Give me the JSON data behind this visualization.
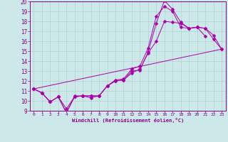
{
  "xlabel": "Windchill (Refroidissement éolien,°C)",
  "bg_color": "#cce8e8",
  "line_color": "#aa00aa",
  "xlim": [
    -0.5,
    23.5
  ],
  "ylim": [
    9,
    20
  ],
  "xticks": [
    0,
    1,
    2,
    3,
    4,
    5,
    6,
    7,
    8,
    9,
    10,
    11,
    12,
    13,
    14,
    15,
    16,
    17,
    18,
    19,
    20,
    21,
    22,
    23
  ],
  "yticks": [
    9,
    10,
    11,
    12,
    13,
    14,
    15,
    16,
    17,
    18,
    19,
    20
  ],
  "series": [
    {
      "x": [
        0,
        1,
        2,
        3,
        4,
        5,
        6,
        7,
        8,
        9,
        10,
        11,
        12,
        13,
        14,
        15,
        16,
        17,
        18,
        19,
        20,
        21
      ],
      "y": [
        11.2,
        10.8,
        9.9,
        10.4,
        8.8,
        10.4,
        10.5,
        10.3,
        10.5,
        11.5,
        12.0,
        12.1,
        13.0,
        13.1,
        14.9,
        17.8,
        20.1,
        19.2,
        17.9,
        17.3,
        17.4,
        16.5
      ],
      "marker": "D",
      "markersize": 2.5
    },
    {
      "x": [
        0,
        1,
        2,
        3,
        4,
        5,
        6,
        7,
        8,
        9,
        10,
        11,
        12,
        13,
        14,
        15,
        16,
        17,
        18,
        19,
        20,
        21,
        22,
        23
      ],
      "y": [
        11.2,
        10.8,
        9.9,
        10.4,
        8.8,
        10.5,
        10.5,
        10.5,
        10.5,
        11.5,
        12.1,
        12.2,
        13.2,
        13.5,
        15.3,
        18.5,
        19.5,
        19.0,
        17.4,
        17.3,
        17.4,
        17.3,
        16.2,
        15.2
      ],
      "marker": "D",
      "markersize": 2.5
    },
    {
      "x": [
        0,
        23
      ],
      "y": [
        11.2,
        15.2
      ],
      "marker": null,
      "markersize": 0
    },
    {
      "x": [
        0,
        1,
        2,
        3,
        4,
        5,
        6,
        7,
        8,
        9,
        10,
        11,
        12,
        13,
        14,
        15,
        16,
        17,
        18,
        19,
        20,
        21,
        22,
        23
      ],
      "y": [
        11.2,
        10.8,
        9.9,
        10.4,
        9.2,
        10.4,
        10.5,
        10.5,
        10.5,
        11.5,
        12.0,
        12.1,
        12.8,
        13.2,
        14.8,
        16.0,
        18.0,
        17.9,
        17.8,
        17.3,
        17.4,
        17.3,
        16.6,
        15.2
      ],
      "marker": "D",
      "markersize": 2.5
    }
  ]
}
